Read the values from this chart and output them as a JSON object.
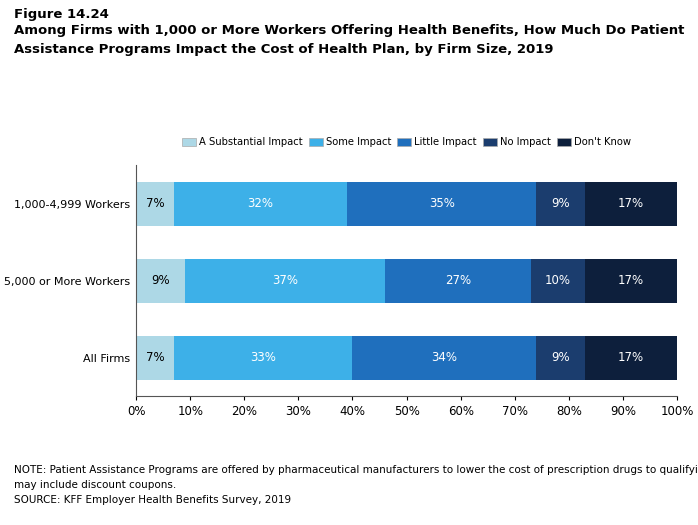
{
  "figure_label": "Figure 14.24",
  "title_line1": "Among Firms with 1,000 or More Workers Offering Health Benefits, How Much Do Patient",
  "title_line2": "Assistance Programs Impact the Cost of Health Plan, by Firm Size, 2019",
  "categories": [
    "1,000-4,999 Workers",
    "5,000 or More Workers",
    "All Firms"
  ],
  "segments": [
    "A Substantial Impact",
    "Some Impact",
    "Little Impact",
    "No Impact",
    "Don't Know"
  ],
  "colors": [
    "#add8e6",
    "#3db0e8",
    "#1f6fbd",
    "#1b3d6e",
    "#0d1f3c"
  ],
  "data": [
    [
      7,
      32,
      35,
      9,
      17
    ],
    [
      9,
      37,
      27,
      10,
      17
    ],
    [
      7,
      33,
      34,
      9,
      17
    ]
  ],
  "note_line1": "NOTE: Patient Assistance Programs are offered by pharmaceutical manufacturers to lower the cost of prescription drugs to qualifying enrollees, these",
  "note_line2": "may include discount coupons.",
  "note_line3": "SOURCE: KFF Employer Health Benefits Survey, 2019",
  "bar_height": 0.58,
  "figsize": [
    6.98,
    5.25
  ],
  "dpi": 100,
  "background": "#ffffff",
  "text_color_dark": "#000000",
  "text_color_light": "#ffffff",
  "label_fontsize": 8.5,
  "note_fontsize": 7.5,
  "title_fontsize": 9.5,
  "fig_label_fontsize": 9.5
}
